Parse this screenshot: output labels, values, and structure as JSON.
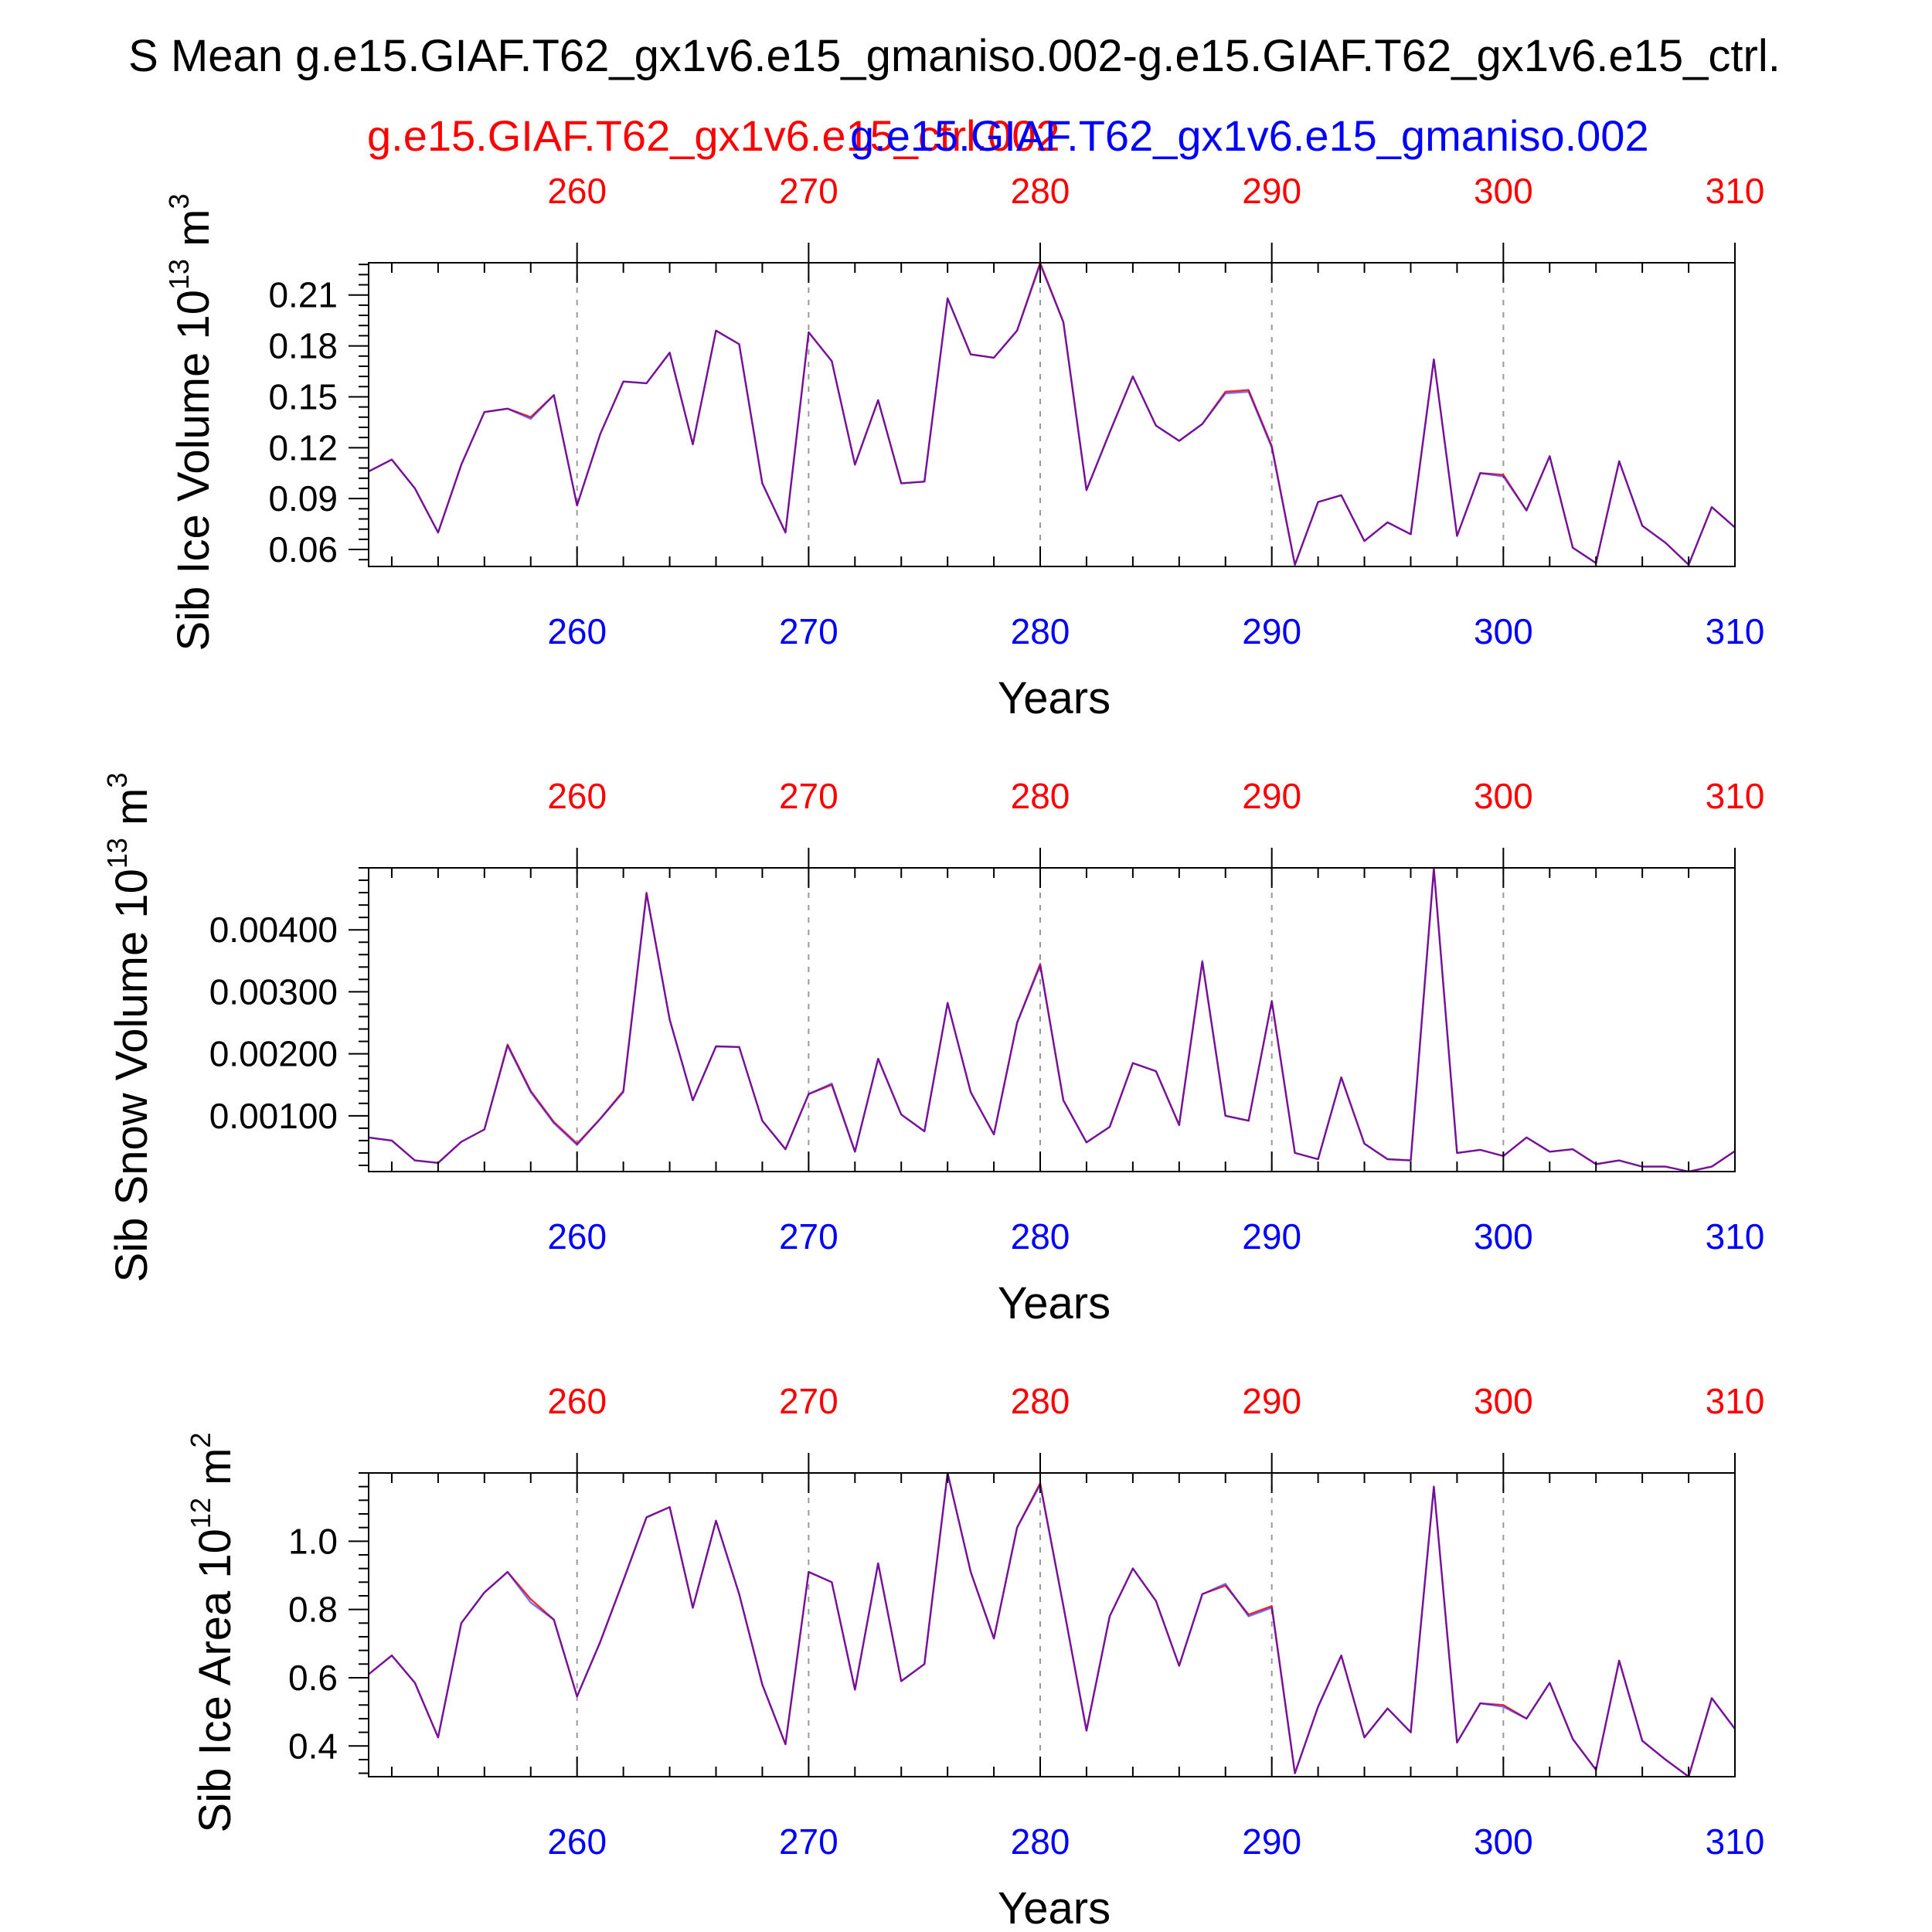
{
  "page_title": "S Mean g.e15.GIAF.T62_gx1v6.e15_gmaniso.002-g.e15.GIAF.T62_gx1v6.e15_ctrl.",
  "legend": {
    "case_a": {
      "label": "g.e15.GIAF.T62_gx1v6.e15_ctrl.002",
      "color": "#ff0000"
    },
    "case_b": {
      "label": "g.e15.GIAF.T62_gx1v6.e15_gmaniso.002",
      "color": "#0000ff"
    }
  },
  "colors": {
    "overlap_line": "#a0206b",
    "axis": "#000000",
    "grid": "#999999"
  },
  "chart_data": [
    {
      "type": "line",
      "ylabel": "Sib Ice Volume 10",
      "ylabel_exp": "13",
      "ylabel_unit": " m",
      "ylabel_unit_exp": "3",
      "xlabel": "Years",
      "xlim": [
        251,
        310
      ],
      "ylim": [
        0.05,
        0.229
      ],
      "x_ticks": [
        "260",
        "270",
        "280",
        "290",
        "300",
        "310"
      ],
      "y_ticks": [
        "0.06",
        "0.09",
        "0.12",
        "0.15",
        "0.18",
        "0.21"
      ],
      "grid_x": [
        260,
        270,
        280,
        290,
        300
      ],
      "series": [
        {
          "name": "g.e15.GIAF.T62_gx1v6.e15_ctrl.002",
          "color": "#ff0000",
          "values": [
            0.106,
            0.113,
            0.096,
            0.07,
            0.11,
            0.141,
            0.143,
            0.138,
            0.151,
            0.086,
            0.128,
            0.159,
            0.158,
            0.176,
            0.122,
            0.189,
            0.181,
            0.099,
            0.07,
            0.188,
            0.171,
            0.11,
            0.148,
            0.099,
            0.1,
            0.208,
            0.175,
            0.173,
            0.189,
            0.229,
            0.194,
            0.095,
            0.129,
            0.162,
            0.133,
            0.124,
            0.134,
            0.153,
            0.154,
            0.121,
            0.051,
            0.088,
            0.092,
            0.065,
            0.076,
            0.069,
            0.172,
            0.068,
            0.105,
            0.104,
            0.083,
            0.115,
            0.061,
            0.052,
            0.112,
            0.074,
            0.064,
            0.051,
            0.085,
            0.073
          ]
        },
        {
          "name": "g.e15.GIAF.T62_gx1v6.e15_gmaniso.002",
          "color": "#0000ff",
          "values": [
            0.106,
            0.113,
            0.096,
            0.07,
            0.11,
            0.141,
            0.143,
            0.137,
            0.151,
            0.086,
            0.128,
            0.159,
            0.158,
            0.176,
            0.122,
            0.189,
            0.181,
            0.099,
            0.07,
            0.188,
            0.171,
            0.11,
            0.148,
            0.099,
            0.1,
            0.208,
            0.175,
            0.173,
            0.189,
            0.228,
            0.194,
            0.095,
            0.129,
            0.162,
            0.133,
            0.124,
            0.134,
            0.152,
            0.153,
            0.12,
            0.051,
            0.088,
            0.092,
            0.065,
            0.076,
            0.069,
            0.172,
            0.068,
            0.105,
            0.103,
            0.083,
            0.115,
            0.061,
            0.052,
            0.112,
            0.074,
            0.064,
            0.051,
            0.085,
            0.073
          ]
        }
      ]
    },
    {
      "type": "line",
      "ylabel": "Sib Snow Volume 10",
      "ylabel_exp": "13",
      "ylabel_unit": " m",
      "ylabel_unit_exp": "3",
      "xlabel": "Years",
      "xlim": [
        251,
        310
      ],
      "ylim": [
        0.0001,
        0.005
      ],
      "x_ticks": [
        "260",
        "270",
        "280",
        "290",
        "300",
        "310"
      ],
      "y_ticks": [
        "0.00100",
        "0.00200",
        "0.00300",
        "0.00400"
      ],
      "grid_x": [
        260,
        270,
        280,
        290,
        300
      ],
      "series": [
        {
          "name": "g.e15.GIAF.T62_gx1v6.e15_ctrl.002",
          "color": "#ff0000",
          "values": [
            0.00065,
            0.0006,
            0.00028,
            0.00024,
            0.00058,
            0.00078,
            0.00215,
            0.0014,
            0.0009,
            0.00055,
            0.00095,
            0.0014,
            0.0046,
            0.00255,
            0.00125,
            0.00212,
            0.00211,
            0.00092,
            0.00046,
            0.00135,
            0.0015,
            0.00042,
            0.00192,
            0.00102,
            0.00075,
            0.00282,
            0.00138,
            0.0007,
            0.0025,
            0.00345,
            0.00125,
            0.00057,
            0.00082,
            0.00185,
            0.00172,
            0.00085,
            0.00348,
            0.001,
            0.00092,
            0.00285,
            0.0004,
            0.0003,
            0.00162,
            0.00055,
            0.0003,
            0.00028,
            0.005,
            0.0004,
            0.00045,
            0.00035,
            0.00065,
            0.00042,
            0.00046,
            0.00022,
            0.00028,
            0.00018,
            0.00018,
            0.0001,
            0.00018,
            0.00043
          ]
        },
        {
          "name": "g.e15.GIAF.T62_gx1v6.e15_gmaniso.002",
          "color": "#0000ff",
          "values": [
            0.00065,
            0.0006,
            0.00028,
            0.00024,
            0.00058,
            0.00078,
            0.00213,
            0.00138,
            0.00088,
            0.00053,
            0.00095,
            0.00138,
            0.00458,
            0.00255,
            0.00125,
            0.00212,
            0.00211,
            0.00092,
            0.00046,
            0.00135,
            0.00152,
            0.00042,
            0.00192,
            0.00102,
            0.00075,
            0.00282,
            0.00138,
            0.0007,
            0.0025,
            0.00342,
            0.00125,
            0.00057,
            0.00082,
            0.00185,
            0.00172,
            0.00085,
            0.0035,
            0.001,
            0.00092,
            0.00285,
            0.0004,
            0.0003,
            0.00162,
            0.00055,
            0.0003,
            0.00028,
            0.00498,
            0.0004,
            0.00045,
            0.00035,
            0.00065,
            0.00042,
            0.00046,
            0.00022,
            0.00028,
            0.00018,
            0.00018,
            0.0001,
            0.00018,
            0.00043
          ]
        }
      ]
    },
    {
      "type": "line",
      "ylabel": "Sib Ice Area 10",
      "ylabel_exp": "12",
      "ylabel_unit": " m",
      "ylabel_unit_exp": "2",
      "xlabel": "Years",
      "xlim": [
        251,
        310
      ],
      "ylim": [
        0.31,
        1.2
      ],
      "x_ticks": [
        "260",
        "270",
        "280",
        "290",
        "300",
        "310"
      ],
      "y_ticks": [
        "0.4",
        "0.6",
        "0.8",
        "1.0"
      ],
      "grid_x": [
        260,
        270,
        280,
        290,
        300
      ],
      "series": [
        {
          "name": "g.e15.GIAF.T62_gx1v6.e15_ctrl.002",
          "color": "#ff0000",
          "values": [
            0.61,
            0.665,
            0.585,
            0.425,
            0.76,
            0.85,
            0.91,
            0.83,
            0.77,
            0.545,
            0.705,
            0.885,
            1.07,
            1.1,
            0.805,
            1.06,
            0.845,
            0.58,
            0.405,
            0.91,
            0.88,
            0.565,
            0.935,
            0.59,
            0.64,
            1.2,
            0.91,
            0.715,
            1.04,
            1.17,
            0.81,
            0.445,
            0.78,
            0.92,
            0.825,
            0.635,
            0.845,
            0.87,
            0.785,
            0.81,
            0.32,
            0.515,
            0.665,
            0.425,
            0.51,
            0.44,
            1.16,
            0.41,
            0.525,
            0.52,
            0.48,
            0.585,
            0.42,
            0.33,
            0.65,
            0.415,
            0.36,
            0.31,
            0.54,
            0.45
          ]
        },
        {
          "name": "g.e15.GIAF.T62_gx1v6.e15_gmaniso.002",
          "color": "#0000ff",
          "values": [
            0.61,
            0.665,
            0.585,
            0.425,
            0.76,
            0.85,
            0.91,
            0.82,
            0.77,
            0.545,
            0.705,
            0.885,
            1.07,
            1.1,
            0.805,
            1.06,
            0.845,
            0.58,
            0.405,
            0.91,
            0.88,
            0.565,
            0.935,
            0.59,
            0.64,
            1.2,
            0.91,
            0.715,
            1.04,
            1.165,
            0.81,
            0.445,
            0.78,
            0.92,
            0.825,
            0.635,
            0.845,
            0.875,
            0.78,
            0.805,
            0.32,
            0.515,
            0.665,
            0.425,
            0.51,
            0.44,
            1.16,
            0.41,
            0.525,
            0.515,
            0.48,
            0.585,
            0.42,
            0.33,
            0.65,
            0.415,
            0.36,
            0.31,
            0.54,
            0.45
          ]
        }
      ]
    }
  ]
}
